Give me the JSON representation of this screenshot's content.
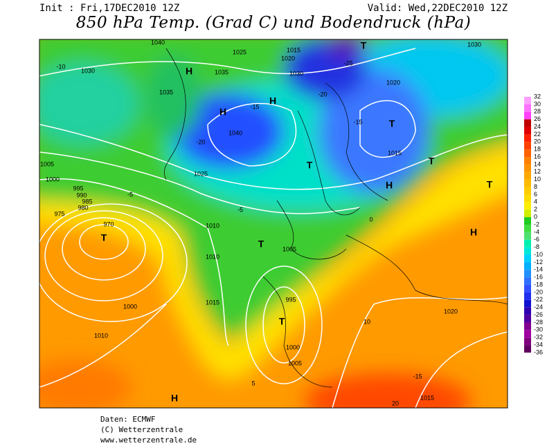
{
  "header": {
    "init": "Init : Fri,17DEC2010 12Z",
    "valid": "Valid: Wed,22DEC2010 12Z",
    "title": "850 hPa Temp. (Grad C) und Bodendruck (hPa)"
  },
  "legend": {
    "values": [
      32,
      30,
      28,
      26,
      24,
      22,
      20,
      18,
      16,
      14,
      12,
      10,
      8,
      6,
      4,
      2,
      0,
      -2,
      -4,
      -6,
      -8,
      -10,
      -12,
      -14,
      -16,
      -18,
      -20,
      -22,
      -24,
      -26,
      -28,
      -30,
      -32,
      -34,
      -36
    ],
    "colors": [
      "#ffa0ff",
      "#ff70ff",
      "#ff40ff",
      "#c00000",
      "#e00000",
      "#ff2000",
      "#ff4000",
      "#ff6000",
      "#ff8000",
      "#ff9400",
      "#ffa800",
      "#ffbb00",
      "#ffcc00",
      "#ffdd00",
      "#ffee00",
      "#d0ee00",
      "#20cc20",
      "#40dd40",
      "#50e070",
      "#00f0b0",
      "#00e8d8",
      "#00d0ff",
      "#00b0ff",
      "#2090ff",
      "#3070ff",
      "#3050ff",
      "#2030f0",
      "#1010d0",
      "#3000b0",
      "#5000a0",
      "#800090",
      "#a000a0",
      "#800080",
      "#600060"
    ]
  },
  "map": {
    "labels": [
      "1040",
      "1025",
      "1015",
      "1020",
      "1030",
      "-10",
      "H",
      "1035",
      "-15",
      "H",
      "1040",
      "-20",
      "H",
      "-25",
      "T",
      "1030",
      "1035",
      "-20",
      "1020",
      "-15",
      "T",
      "1015",
      "T",
      "1025",
      "1005",
      "1000",
      "995",
      "990",
      "985",
      "980",
      "975",
      "970",
      "T",
      "1010",
      "-5",
      "1010",
      "T",
      "1005",
      "1000",
      "995",
      "T",
      "1000",
      "1005",
      "1015",
      "1010",
      "5",
      "10",
      "0",
      "H",
      "1020",
      "-15",
      "20",
      "1015",
      "H",
      "T",
      "H",
      "T",
      "1030",
      "-5"
    ]
  },
  "footer": {
    "source": "Daten: ECMWF",
    "copyright": "(C) Wetterzentrale",
    "url": "www.wetterzentrale.de"
  }
}
